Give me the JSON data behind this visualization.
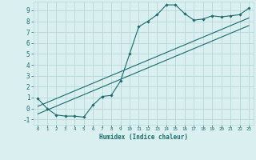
{
  "xlabel": "Humidex (Indice chaleur)",
  "bg_color": "#daf0f0",
  "grid_color": "#b8d8d8",
  "line_color": "#1a6b6b",
  "xlim": [
    -0.5,
    23.5
  ],
  "ylim": [
    -1.5,
    9.8
  ],
  "xticks": [
    0,
    1,
    2,
    3,
    4,
    5,
    6,
    7,
    8,
    9,
    10,
    11,
    12,
    13,
    14,
    15,
    16,
    17,
    18,
    19,
    20,
    21,
    22,
    23
  ],
  "yticks": [
    -1,
    0,
    1,
    2,
    3,
    4,
    5,
    6,
    7,
    8,
    9
  ],
  "main_x": [
    0,
    1,
    2,
    3,
    4,
    5,
    6,
    7,
    8,
    9,
    10,
    11,
    12,
    13,
    14,
    15,
    16,
    17,
    18,
    19,
    20,
    21,
    22,
    23
  ],
  "main_y": [
    0.9,
    0.0,
    -0.6,
    -0.7,
    -0.7,
    -0.8,
    0.3,
    1.1,
    1.2,
    2.5,
    5.0,
    7.5,
    8.0,
    8.6,
    9.5,
    9.5,
    8.7,
    8.1,
    8.2,
    8.5,
    8.4,
    8.5,
    8.6,
    9.2
  ],
  "line2_x": [
    0,
    23
  ],
  "line2_y": [
    -0.5,
    7.6
  ],
  "line3_x": [
    0,
    23
  ],
  "line3_y": [
    0.2,
    8.3
  ]
}
